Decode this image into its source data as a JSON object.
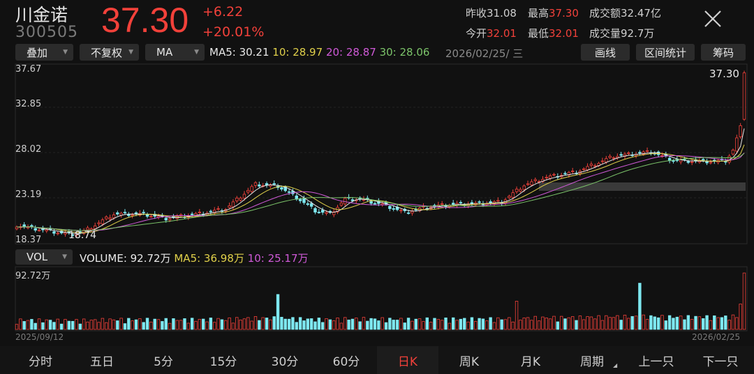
{
  "header": {
    "name": "川金诺",
    "code": "300505",
    "price": "37.30",
    "change": "+6.22",
    "change_pct": "+20.01%",
    "prev_close_label": "昨收",
    "prev_close": "31.08",
    "high_label": "最高",
    "high": "37.30",
    "turnover_label": "成交额",
    "turnover": "32.47亿",
    "open_label": "今开",
    "open": "32.01",
    "low_label": "最低",
    "low": "32.01",
    "volume_label": "成交量",
    "volume": "92.7万"
  },
  "toolbar": {
    "overlay": "叠加",
    "adjust": "不复权",
    "indicator": "MA",
    "ma5": "MA5: 30.21",
    "ma10": "10: 28.97",
    "ma20": "20: 28.87",
    "ma30": "30: 28.06",
    "date": "2026/02/25/ 三",
    "draw": "画线",
    "range_stats": "区间统计",
    "chips": "筹码"
  },
  "chart_data": {
    "type": "candlestick",
    "y_ticks": [
      "37.67",
      "32.85",
      "28.02",
      "23.19",
      "18.37"
    ],
    "ylim": [
      18.37,
      37.67
    ],
    "last_price_label": "37.30",
    "low_marker": "18.74",
    "start_date": "2025/09/12",
    "end_date": "2026/02/25",
    "volume_indicator": "VOL",
    "volume_label": "VOLUME: 92.72万",
    "volume_ma5": "MA5: 36.98万",
    "volume_ma10": "10: 25.17万",
    "volume_max": "92.72万",
    "colors": {
      "up": "#f2413a",
      "down": "#7ee8f0",
      "ma5": "#e8e8e8",
      "ma10": "#e0d04a",
      "ma20": "#d05ad8",
      "ma30": "#7cc46a"
    }
  },
  "tabs": [
    {
      "label": "分时"
    },
    {
      "label": "五日"
    },
    {
      "label": "5分"
    },
    {
      "label": "15分"
    },
    {
      "label": "30分"
    },
    {
      "label": "60分"
    },
    {
      "label": "日K"
    },
    {
      "label": "周K"
    },
    {
      "label": "月K"
    },
    {
      "label": "周期"
    },
    {
      "label": "上一只"
    },
    {
      "label": "下一只"
    }
  ]
}
